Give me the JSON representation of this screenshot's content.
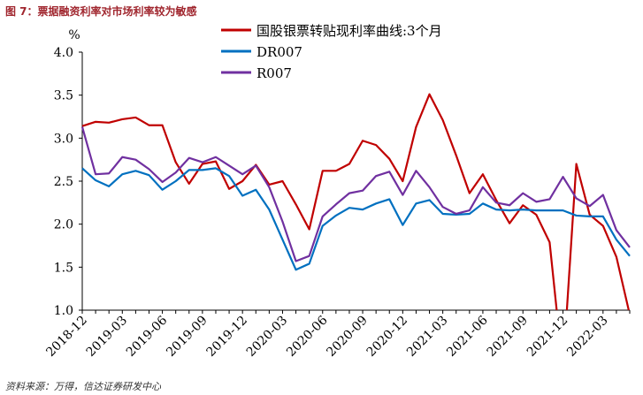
{
  "figure_title": "图 7：票据融资利率对市场利率较为敏感",
  "source": "资料来源：万得，信达证券研发中心",
  "chart_data": {
    "type": "line",
    "title": "",
    "ylabel": "%",
    "ylim": [
      1.0,
      4.0
    ],
    "yticks": [
      "1.0",
      "1.5",
      "2.0",
      "2.5",
      "3.0",
      "3.5",
      "4.0"
    ],
    "xticks": [
      "2018-12",
      "2019-03",
      "2019-06",
      "2019-09",
      "2019-12",
      "2020-03",
      "2020-06",
      "2020-09",
      "2020-12",
      "2021-03",
      "2021-06",
      "2021-09",
      "2021-12",
      "2022-03"
    ],
    "x": [
      "2018-12",
      "2019-01",
      "2019-02",
      "2019-03",
      "2019-04",
      "2019-05",
      "2019-06",
      "2019-07",
      "2019-08",
      "2019-09",
      "2019-10",
      "2019-11",
      "2019-12",
      "2020-01",
      "2020-02",
      "2020-03",
      "2020-04",
      "2020-05",
      "2020-06",
      "2020-07",
      "2020-08",
      "2020-09",
      "2020-10",
      "2020-11",
      "2020-12",
      "2021-01",
      "2021-02",
      "2021-03",
      "2021-04",
      "2021-05",
      "2021-06",
      "2021-07",
      "2021-08",
      "2021-09",
      "2021-10",
      "2021-11",
      "2021-12",
      "2022-01",
      "2022-02",
      "2022-03",
      "2022-04",
      "2022-05"
    ],
    "legend_position": "top-center",
    "grid": false,
    "series": [
      {
        "name": "国股银票转贴现利率曲线:3个月",
        "color": "#c00000",
        "values": [
          3.14,
          3.19,
          3.18,
          3.22,
          3.24,
          3.15,
          3.15,
          2.72,
          2.47,
          2.7,
          2.73,
          2.41,
          2.5,
          2.69,
          2.46,
          2.5,
          2.23,
          1.94,
          2.62,
          2.62,
          2.7,
          2.97,
          2.92,
          2.76,
          2.5,
          3.13,
          3.51,
          3.21,
          2.8,
          2.36,
          2.58,
          2.28,
          2.01,
          2.22,
          2.11,
          1.79,
          0.3,
          2.7,
          2.11,
          1.98,
          1.62,
          0.95
        ]
      },
      {
        "name": "DR007",
        "color": "#0070c0",
        "values": [
          2.65,
          2.51,
          2.44,
          2.58,
          2.62,
          2.57,
          2.4,
          2.5,
          2.63,
          2.63,
          2.65,
          2.56,
          2.33,
          2.4,
          2.17,
          1.82,
          1.47,
          1.54,
          1.98,
          2.1,
          2.19,
          2.17,
          2.24,
          2.29,
          1.99,
          2.24,
          2.28,
          2.12,
          2.11,
          2.12,
          2.24,
          2.17,
          2.16,
          2.17,
          2.16,
          2.16,
          2.16,
          2.1,
          2.09,
          2.09,
          1.82,
          1.63
        ]
      },
      {
        "name": "R007",
        "color": "#7030a0",
        "values": [
          3.13,
          2.58,
          2.59,
          2.78,
          2.75,
          2.64,
          2.49,
          2.6,
          2.77,
          2.72,
          2.78,
          2.68,
          2.58,
          2.68,
          2.43,
          2.03,
          1.57,
          1.63,
          2.09,
          2.23,
          2.36,
          2.39,
          2.56,
          2.61,
          2.34,
          2.62,
          2.43,
          2.2,
          2.12,
          2.16,
          2.43,
          2.25,
          2.22,
          2.36,
          2.26,
          2.29,
          2.55,
          2.3,
          2.21,
          2.34,
          1.93,
          1.73
        ]
      }
    ]
  }
}
